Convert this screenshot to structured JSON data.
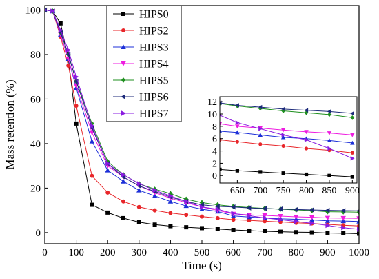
{
  "chart_data": [
    {
      "type": "line",
      "xlabel": "Time (s)",
      "ylabel": "Mass retention (%)",
      "xlim": [
        0,
        1000
      ],
      "ylim": [
        -5,
        102
      ],
      "xticks": [
        0,
        100,
        200,
        300,
        400,
        500,
        600,
        700,
        800,
        900,
        1000
      ],
      "yticks": [
        0,
        20,
        40,
        60,
        80,
        100
      ],
      "grid": false,
      "legend_position": "top-center",
      "series": [
        {
          "name": "HIPS0",
          "color": "#000000",
          "marker": "square",
          "x": [
            0,
            25,
            50,
            75,
            100,
            150,
            200,
            250,
            300,
            350,
            400,
            450,
            500,
            550,
            600,
            650,
            700,
            750,
            800,
            850,
            900,
            950,
            1000
          ],
          "y": [
            100,
            99.5,
            94,
            78,
            49,
            12.5,
            9,
            6.5,
            4.7,
            3.6,
            2.9,
            2.4,
            2.0,
            1.6,
            1.2,
            0.9,
            0.6,
            0.4,
            0.2,
            0.1,
            -0.2,
            -0.3,
            -0.5
          ]
        },
        {
          "name": "HIPS2",
          "color": "#e8262a",
          "marker": "circle",
          "x": [
            0,
            25,
            50,
            75,
            100,
            150,
            200,
            250,
            300,
            350,
            400,
            450,
            500,
            550,
            600,
            650,
            700,
            750,
            800,
            850,
            900,
            950,
            1000
          ],
          "y": [
            100,
            99.5,
            88,
            75,
            57,
            25.5,
            18,
            14,
            11.5,
            10,
            8.8,
            8,
            7.2,
            6.5,
            5.8,
            5.5,
            5.1,
            4.8,
            4.4,
            4.1,
            3.7,
            3.3,
            3.0
          ]
        },
        {
          "name": "HIPS3",
          "color": "#1c2fd8",
          "marker": "triangle-up",
          "x": [
            0,
            25,
            50,
            75,
            100,
            150,
            200,
            250,
            300,
            350,
            400,
            450,
            500,
            550,
            600,
            650,
            700,
            750,
            800,
            850,
            900,
            950,
            1000
          ],
          "y": [
            100,
            99.5,
            89,
            78,
            65,
            41,
            28,
            23,
            19,
            16.5,
            14,
            12,
            10.5,
            9.5,
            7.5,
            7.0,
            6.6,
            6.2,
            6.0,
            5.7,
            5.3,
            5.2,
            5.0
          ]
        },
        {
          "name": "HIPS4",
          "color": "#ee1ce0",
          "marker": "triangle-down",
          "x": [
            0,
            25,
            50,
            75,
            100,
            150,
            200,
            250,
            300,
            350,
            400,
            450,
            500,
            550,
            600,
            650,
            700,
            750,
            800,
            850,
            900,
            950,
            1000
          ],
          "y": [
            100,
            99.5,
            89,
            78,
            66,
            45,
            30,
            25,
            21,
            18,
            15.5,
            13.5,
            11.5,
            10,
            8.4,
            8.0,
            7.7,
            7.4,
            7.1,
            6.9,
            6.6,
            6.5,
            6.4
          ]
        },
        {
          "name": "HIPS5",
          "color": "#1f8f1f",
          "marker": "diamond",
          "x": [
            0,
            25,
            50,
            75,
            100,
            150,
            200,
            250,
            300,
            350,
            400,
            450,
            500,
            550,
            600,
            650,
            700,
            750,
            800,
            850,
            900,
            950,
            1000
          ],
          "y": [
            100,
            99.5,
            90,
            80,
            68,
            49,
            32,
            26,
            22,
            19.5,
            17.5,
            15,
            13.5,
            12.5,
            11.8,
            11.3,
            10.9,
            10.5,
            10.2,
            9.9,
            9.4,
            9.3,
            9.2
          ]
        },
        {
          "name": "HIPS6",
          "color": "#1c2a7a",
          "marker": "triangle-left",
          "x": [
            0,
            25,
            50,
            75,
            100,
            150,
            200,
            250,
            300,
            350,
            400,
            450,
            500,
            550,
            600,
            650,
            700,
            750,
            800,
            850,
            900,
            950,
            1000
          ],
          "y": [
            100,
            99.5,
            90,
            80,
            68,
            47,
            31,
            25,
            21,
            18.5,
            16,
            14,
            12.5,
            11.8,
            11.5,
            11.1,
            10.8,
            10.6,
            10.4,
            10.2,
            10.0,
            9.9,
            9.8
          ]
        },
        {
          "name": "HIPS7",
          "color": "#8a1be0",
          "marker": "triangle-right",
          "x": [
            0,
            25,
            50,
            75,
            100,
            150,
            200,
            250,
            300,
            350,
            400,
            450,
            500,
            550,
            600,
            650,
            700,
            750,
            800,
            850,
            900,
            950,
            1000
          ],
          "y": [
            100,
            99.5,
            91,
            82,
            70,
            48,
            31,
            26,
            22,
            19,
            16.5,
            14,
            11.5,
            10.5,
            8.6,
            7.6,
            6.6,
            5.8,
            5.0,
            4.2,
            3.2,
            2.2,
            1.5
          ]
        }
      ]
    },
    {
      "type": "line",
      "xlabel": "",
      "ylabel": "",
      "xlim": [
        612,
        910
      ],
      "ylim": [
        -1.2,
        12.8
      ],
      "xticks": [
        650,
        700,
        750,
        800,
        850,
        900
      ],
      "yticks": [
        0,
        2,
        4,
        6,
        8,
        10,
        12
      ],
      "grid": false,
      "series": [
        {
          "color": "#000000",
          "marker": "square",
          "x": [
            612,
            650,
            700,
            750,
            800,
            850,
            900
          ],
          "y": [
            1.0,
            0.8,
            0.6,
            0.4,
            0.2,
            0.0,
            -0.2
          ]
        },
        {
          "color": "#e8262a",
          "marker": "circle",
          "x": [
            612,
            650,
            700,
            750,
            800,
            850,
            900
          ],
          "y": [
            5.8,
            5.5,
            5.1,
            4.8,
            4.4,
            4.1,
            3.7
          ]
        },
        {
          "color": "#1c2fd8",
          "marker": "triangle-up",
          "x": [
            612,
            650,
            700,
            750,
            800,
            850,
            900
          ],
          "y": [
            7.2,
            7.0,
            6.6,
            6.2,
            6.0,
            5.7,
            5.3
          ]
        },
        {
          "color": "#ee1ce0",
          "marker": "triangle-down",
          "x": [
            612,
            650,
            700,
            750,
            800,
            850,
            900
          ],
          "y": [
            8.4,
            8.0,
            7.7,
            7.4,
            7.1,
            6.9,
            6.6
          ]
        },
        {
          "color": "#1f8f1f",
          "marker": "diamond",
          "x": [
            612,
            650,
            700,
            750,
            800,
            850,
            900
          ],
          "y": [
            11.7,
            11.3,
            10.9,
            10.5,
            10.2,
            9.9,
            9.4
          ]
        },
        {
          "color": "#1c2a7a",
          "marker": "triangle-left",
          "x": [
            612,
            650,
            700,
            750,
            800,
            850,
            900
          ],
          "y": [
            11.8,
            11.4,
            11.1,
            10.8,
            10.6,
            10.4,
            10.1
          ]
        },
        {
          "color": "#8a1be0",
          "marker": "triangle-right",
          "x": [
            612,
            650,
            700,
            750,
            800,
            850,
            900
          ],
          "y": [
            9.8,
            8.6,
            7.6,
            6.6,
            5.8,
            4.4,
            2.8
          ]
        }
      ]
    }
  ]
}
